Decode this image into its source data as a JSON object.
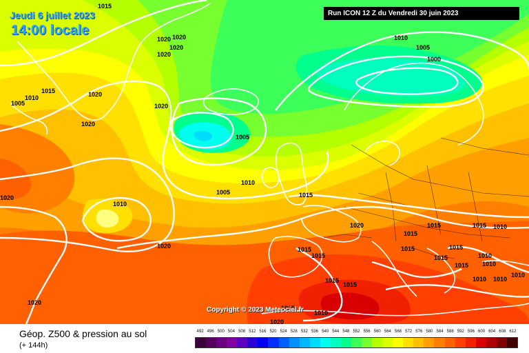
{
  "header": {
    "date": "Jeudi 6 juillet 2023",
    "time": "14:00 locale",
    "run_info": "Run ICON 12 Z du Vendredi 30 juin 2023"
  },
  "footer": {
    "title": "Géop. Z500 & pression au sol",
    "lead_time": "(+ 144h)",
    "copyright": "Copyright © 2023 Meteociel.fr"
  },
  "legend": {
    "values": [
      "492",
      "496",
      "500",
      "504",
      "508",
      "512",
      "516",
      "520",
      "524",
      "528",
      "532",
      "536",
      "540",
      "544",
      "548",
      "552",
      "556",
      "560",
      "564",
      "568",
      "572",
      "576",
      "580",
      "584",
      "588",
      "592",
      "596",
      "600",
      "604",
      "608",
      "612"
    ],
    "colors": [
      "#3c003c",
      "#52005c",
      "#6a0080",
      "#8000a0",
      "#5a00c0",
      "#2a00d8",
      "#0000f0",
      "#0030ff",
      "#0060ff",
      "#0090ff",
      "#00b8ff",
      "#00dcff",
      "#00ffee",
      "#00ffbe",
      "#00ff8c",
      "#3cff5a",
      "#78ff30",
      "#b4ff00",
      "#dcff00",
      "#ffff00",
      "#ffe000",
      "#ffc000",
      "#ffa000",
      "#ff8000",
      "#ff6000",
      "#ff4000",
      "#f02000",
      "#d80000",
      "#b00000",
      "#800000",
      "#400000"
    ]
  },
  "isobar_labels": [
    {
      "text": "1015"
    },
    {
      "text": "1020"
    },
    {
      "text": "1020"
    },
    {
      "text": "1020"
    },
    {
      "text": "1020"
    },
    {
      "text": "1010"
    },
    {
      "text": "1005"
    },
    {
      "text": "1000"
    },
    {
      "text": "1015"
    },
    {
      "text": "1010"
    },
    {
      "text": "1005"
    },
    {
      "text": "1020"
    },
    {
      "text": "1020"
    },
    {
      "text": "1020"
    },
    {
      "text": "1020"
    },
    {
      "text": "1005"
    },
    {
      "text": "1010"
    },
    {
      "text": "1005"
    },
    {
      "text": "1015"
    },
    {
      "text": "1010"
    },
    {
      "text": "1020"
    },
    {
      "text": "1015"
    },
    {
      "text": "1015"
    },
    {
      "text": "1015"
    },
    {
      "text": "1010"
    },
    {
      "text": "1015"
    },
    {
      "text": "1015"
    },
    {
      "text": "1015"
    },
    {
      "text": "1015"
    },
    {
      "text": "1015"
    },
    {
      "text": "1015"
    },
    {
      "text": "1010"
    },
    {
      "text": "1010"
    },
    {
      "text": "1010"
    },
    {
      "text": "1010"
    },
    {
      "text": "1015"
    },
    {
      "text": "1010"
    },
    {
      "text": "1020"
    },
    {
      "text": "1020"
    },
    {
      "text": "1020"
    },
    {
      "text": "1010"
    },
    {
      "text": "1015"
    },
    {
      "text": "1015"
    }
  ]
}
